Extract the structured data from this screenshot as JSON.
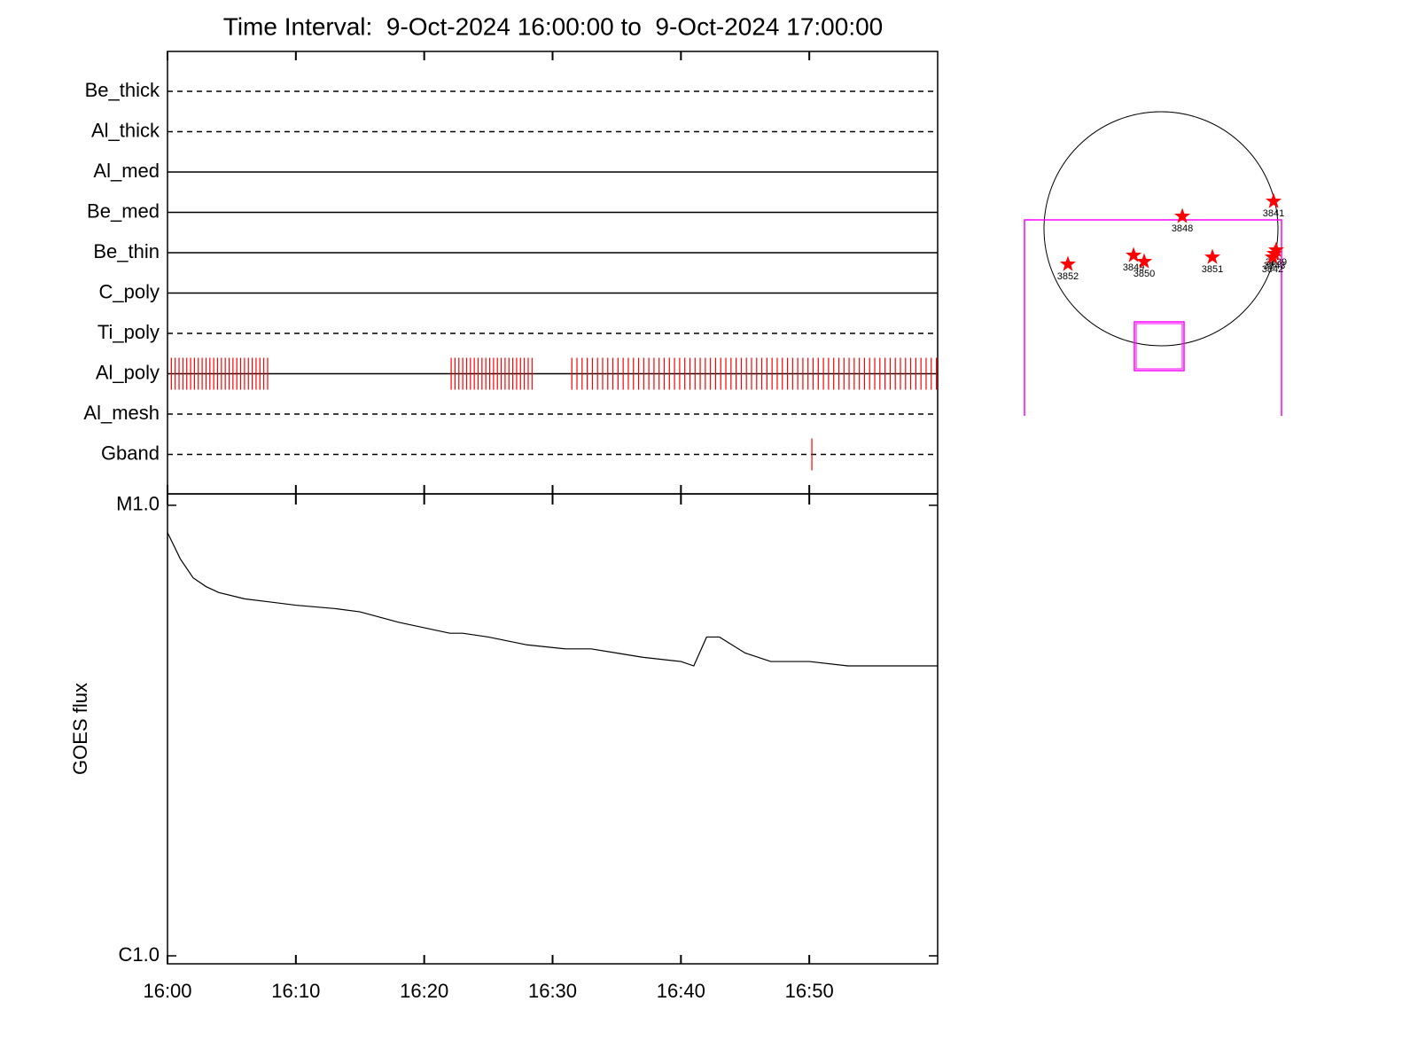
{
  "chart_data": [
    {
      "type": "timeline",
      "title": "Time Interval:  9-Oct-2024 16:00:00 to  9-Oct-2024 17:00:00",
      "xlim": [
        0,
        60
      ],
      "rows": [
        {
          "name": "Be_thick",
          "style": "dashed"
        },
        {
          "name": "Al_thick",
          "style": "dashed"
        },
        {
          "name": "Al_med",
          "style": "solid"
        },
        {
          "name": "Be_med",
          "style": "solid"
        },
        {
          "name": "Be_thin",
          "style": "solid"
        },
        {
          "name": "C_poly",
          "style": "solid"
        },
        {
          "name": "Ti_poly",
          "style": "dashed"
        },
        {
          "name": "Al_poly",
          "style": "solid"
        },
        {
          "name": "Al_mesh",
          "style": "dashed"
        },
        {
          "name": "Gband",
          "style": "dashed"
        }
      ],
      "event_color": "#ff0000",
      "events": [
        {
          "row": 7,
          "times": [
            0.3,
            0.6,
            0.9,
            1.2,
            1.5,
            1.8,
            2.1,
            2.4,
            2.7,
            3,
            3.3,
            3.6,
            3.9,
            4.2,
            4.5,
            4.8,
            5.1,
            5.4,
            5.7,
            6,
            6.3,
            6.6,
            6.9,
            7.2,
            7.5,
            7.8,
            22.1,
            22.4,
            22.7,
            23,
            23.3,
            23.6,
            23.9,
            24.2,
            24.5,
            24.8,
            25.1,
            25.4,
            25.7,
            26,
            26.3,
            26.6,
            26.9,
            27.2,
            27.5,
            27.8,
            28.1,
            28.4,
            31.5,
            31.9,
            32.3,
            32.7,
            33.1,
            33.5,
            33.9,
            34.3,
            34.7,
            35.1,
            35.5,
            35.9,
            36.3,
            36.7,
            37.1,
            37.5,
            37.9,
            38.3,
            38.7,
            39.1,
            39.5,
            39.9,
            40.3,
            40.7,
            41.1,
            41.5,
            41.9,
            42.3,
            42.7,
            43.1,
            43.5,
            43.9,
            44.3,
            44.7,
            45.1,
            45.5,
            45.9,
            46.3,
            46.7,
            47.1,
            47.5,
            47.9,
            48.3,
            48.7,
            49.1,
            49.5,
            49.9,
            50.3,
            50.7,
            51.1,
            51.5,
            51.9,
            52.3,
            52.7,
            53.1,
            53.5,
            53.9,
            54.3,
            54.7,
            55.1,
            55.5,
            55.9,
            56.3,
            56.7,
            57.1,
            57.5,
            57.9,
            58.3,
            58.7,
            59.1,
            59.5,
            59.9
          ]
        },
        {
          "row": 9,
          "times": [
            50.2
          ]
        }
      ]
    },
    {
      "type": "line",
      "ylabel": "GOES flux",
      "log_y": true,
      "color": "#000000",
      "xlim": [
        0,
        60
      ],
      "xticks": [
        {
          "value": 0,
          "label": "16:00"
        },
        {
          "value": 10,
          "label": "16:10"
        },
        {
          "value": 20,
          "label": "16:20"
        },
        {
          "value": 30,
          "label": "16:30"
        },
        {
          "value": 40,
          "label": "16:40"
        },
        {
          "value": 50,
          "label": "16:50"
        }
      ],
      "ylim": [
        9.6e-07,
        1.06e-05
      ],
      "yticks": [
        {
          "value": 1e-06,
          "label": "C1.0"
        },
        {
          "value": 1e-05,
          "label": "M1.0"
        }
      ],
      "x": [
        0,
        1,
        2,
        3,
        4,
        6,
        8,
        10,
        13,
        15,
        18,
        22,
        23,
        25,
        28,
        31,
        33,
        35,
        37,
        40,
        41,
        42,
        43,
        45,
        47,
        50,
        53,
        55,
        57,
        60
      ],
      "values": [
        8.7e-06,
        7.6e-06,
        6.9e-06,
        6.6e-06,
        6.4e-06,
        6.2e-06,
        6.1e-06,
        6e-06,
        5.9e-06,
        5.8e-06,
        5.5e-06,
        5.2e-06,
        5.2e-06,
        5.1e-06,
        4.9e-06,
        4.8e-06,
        4.8e-06,
        4.7e-06,
        4.6e-06,
        4.5e-06,
        4.4e-06,
        5.1e-06,
        5.1e-06,
        4.7e-06,
        4.5e-06,
        4.5e-06,
        4.4e-06,
        4.4e-06,
        4.4e-06,
        4.4e-06
      ]
    },
    {
      "type": "map",
      "color": "#ff0000",
      "regions": [
        {
          "label": "3841",
          "x": 924,
          "y": 225
        },
        {
          "label": "3848",
          "x": 175,
          "y": 102
        },
        {
          "label": "3852",
          "x": -764,
          "y": -291
        },
        {
          "label": "3849",
          "x": -225,
          "y": -218
        },
        {
          "label": "3850",
          "x": -138,
          "y": -269
        },
        {
          "label": "3851",
          "x": 422,
          "y": -233
        },
        {
          "label": "3839",
          "x": 945,
          "y": -175
        },
        {
          "label": "3843",
          "x": 931,
          "y": -204
        },
        {
          "label": "3842",
          "x": 916,
          "y": -233
        }
      ]
    }
  ]
}
